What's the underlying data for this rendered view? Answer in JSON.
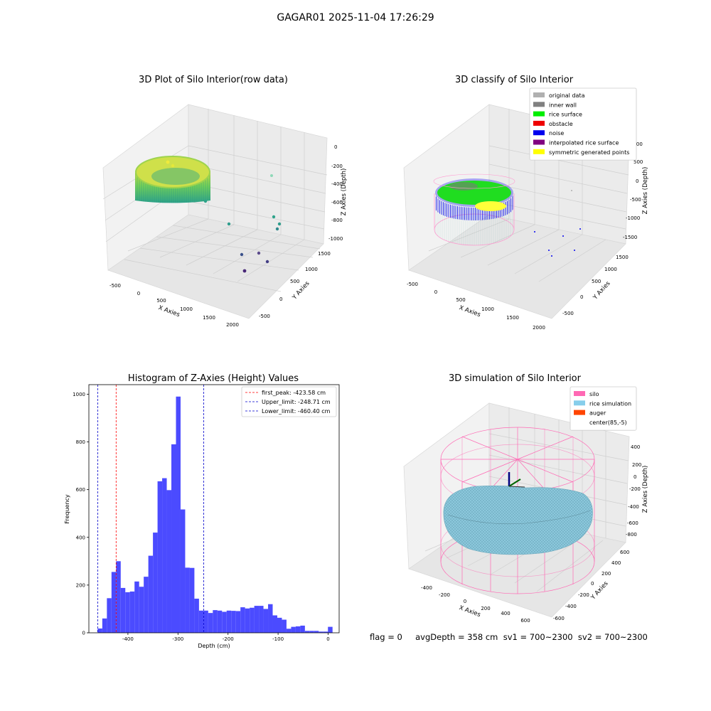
{
  "figure": {
    "suptitle": "GAGAR01 2025-11-04 17:26:29",
    "footer": "flag = 0     avgDepth = 358 cm  sv1 = 700~2300  sv2 = 700~2300"
  },
  "chart_data": [
    {
      "type": "scatter",
      "projection": "3d",
      "title": "3D Plot of Silo Interior(row data)",
      "xlabel": "X Axies",
      "ylabel": "Y Axies",
      "zlabel": "Z Axies (Depth)",
      "x_ticks": [
        "-500",
        "0",
        "500",
        "1000",
        "1500",
        "2000"
      ],
      "y_ticks": [
        "-500",
        "0",
        "500",
        "1000",
        "1500"
      ],
      "z_ticks": [
        "0",
        "-200",
        "-400",
        "-600",
        "-800",
        "-1000"
      ],
      "colormap": "viridis",
      "description_points": "dense ring of points near z -200 to -500 plus scattered outliers"
    },
    {
      "type": "scatter",
      "projection": "3d",
      "title": "3D classify of Silo Interior",
      "x_ticks": [
        "-500",
        "0",
        "500",
        "1000",
        "1500",
        "2000"
      ],
      "y_ticks": [
        "-500",
        "0",
        "500",
        "1000",
        "1500"
      ],
      "z_ticks": [
        "1000",
        "500",
        "0",
        "-500",
        "-1000",
        "-1500"
      ],
      "xlabel": "X Axies",
      "ylabel": "Y Axies",
      "zlabel": "Z Axies (Depth)",
      "legend_position": "top-right",
      "legend": [
        {
          "label": "original data",
          "color": "#b0b0b0"
        },
        {
          "label": "inner wall",
          "color": "#808080"
        },
        {
          "label": "rice surface",
          "color": "#00ee00"
        },
        {
          "label": "obstacle",
          "color": "#ee0000"
        },
        {
          "label": "noise",
          "color": "#0000ee"
        },
        {
          "label": "interpolated rice surface",
          "color": "#800080"
        },
        {
          "label": "symmetric generated points",
          "color": "#ffff00"
        }
      ]
    },
    {
      "type": "bar",
      "title": "Histogram of Z-Axies (Height) Values",
      "xlabel": "Depth (cm)",
      "ylabel": "Frequency",
      "xlim": [
        -478,
        22
      ],
      "ylim": [
        0,
        1040
      ],
      "bin_width": 9.2,
      "bin_start": -460.4,
      "x_ticks": [
        -400,
        -300,
        -200,
        -100,
        0
      ],
      "y_ticks": [
        0,
        200,
        400,
        600,
        800,
        1000
      ],
      "bar_color": "#4b4bff",
      "values": [
        18,
        60,
        145,
        255,
        300,
        188,
        170,
        173,
        215,
        193,
        235,
        323,
        420,
        635,
        648,
        598,
        790,
        990,
        517,
        273,
        272,
        143,
        93,
        93,
        83,
        95,
        93,
        88,
        93,
        92,
        91,
        107,
        102,
        105,
        113,
        113,
        100,
        120,
        73,
        63,
        55,
        17,
        25,
        27,
        30,
        8,
        8,
        8,
        5,
        5,
        25
      ],
      "lines": [
        {
          "label": "first_peak: -423.58 cm",
          "x": -423.58,
          "color": "#ff0000"
        },
        {
          "label": "Upper_limit: -248.71 cm",
          "x": -248.71,
          "color": "#0000cc"
        },
        {
          "label": "Lower_limit: -460.40 cm",
          "x": -460.4,
          "color": "#0000cc"
        }
      ],
      "legend_position": "top-right"
    },
    {
      "type": "surface",
      "projection": "3d",
      "title": "3D simulation of Silo Interior",
      "xlabel": "X Axies",
      "ylabel": "Y Axies",
      "zlabel": "Z Axies (Depth)",
      "x_ticks": [
        "-400",
        "-200",
        "0",
        "200",
        "400",
        "600"
      ],
      "y_ticks": [
        "-600",
        "-400",
        "-200",
        "0",
        "200",
        "400",
        "600"
      ],
      "z_ticks": [
        "400",
        "200",
        "0",
        "-200",
        "-400",
        "-600",
        "-800"
      ],
      "legend_position": "top-right",
      "legend": [
        {
          "label": "silo",
          "color": "#ff69b4"
        },
        {
          "label": "rice simulation",
          "color": "#87ceeb"
        },
        {
          "label": "auger",
          "color": "#ff4500"
        },
        {
          "label": "center(85,-5)",
          "color": "#ffffff"
        }
      ]
    }
  ]
}
